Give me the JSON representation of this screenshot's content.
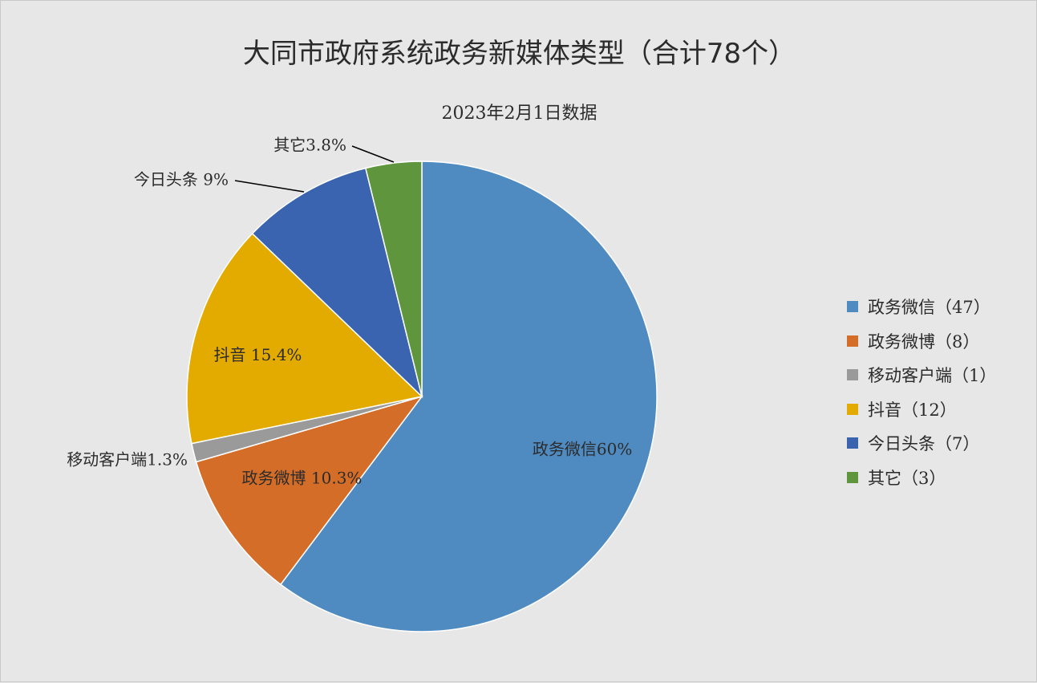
{
  "chart_data": {
    "type": "pie",
    "title": "大同市政府系统政务新媒体类型（合计78个）",
    "subtitle": "2023年2月1日数据",
    "legend_position": "right",
    "slices": [
      {
        "name": "政务微信",
        "count": 47,
        "legend": "政务微信（47）",
        "label": "政务微信60%",
        "color": "#4f8bc0"
      },
      {
        "name": "政务微博",
        "count": 8,
        "legend": "政务微博（8）",
        "label": "政务微博 10.3%",
        "color": "#d46d28"
      },
      {
        "name": "移动客户端",
        "count": 1,
        "legend": "移动客户端（1）",
        "label": "移动客户端1.3%",
        "color": "#9a9a9a"
      },
      {
        "name": "抖音",
        "count": 12,
        "legend": "抖音（12）",
        "label": "抖音 15.4%",
        "color": "#e3ab00"
      },
      {
        "name": "今日头条",
        "count": 7,
        "legend": "今日头条（7）",
        "label": "今日头条 9%",
        "color": "#3a64b0"
      },
      {
        "name": "其它",
        "count": 3,
        "legend": "其它（3）",
        "label": "其它3.8%",
        "color": "#5f963d"
      }
    ]
  }
}
